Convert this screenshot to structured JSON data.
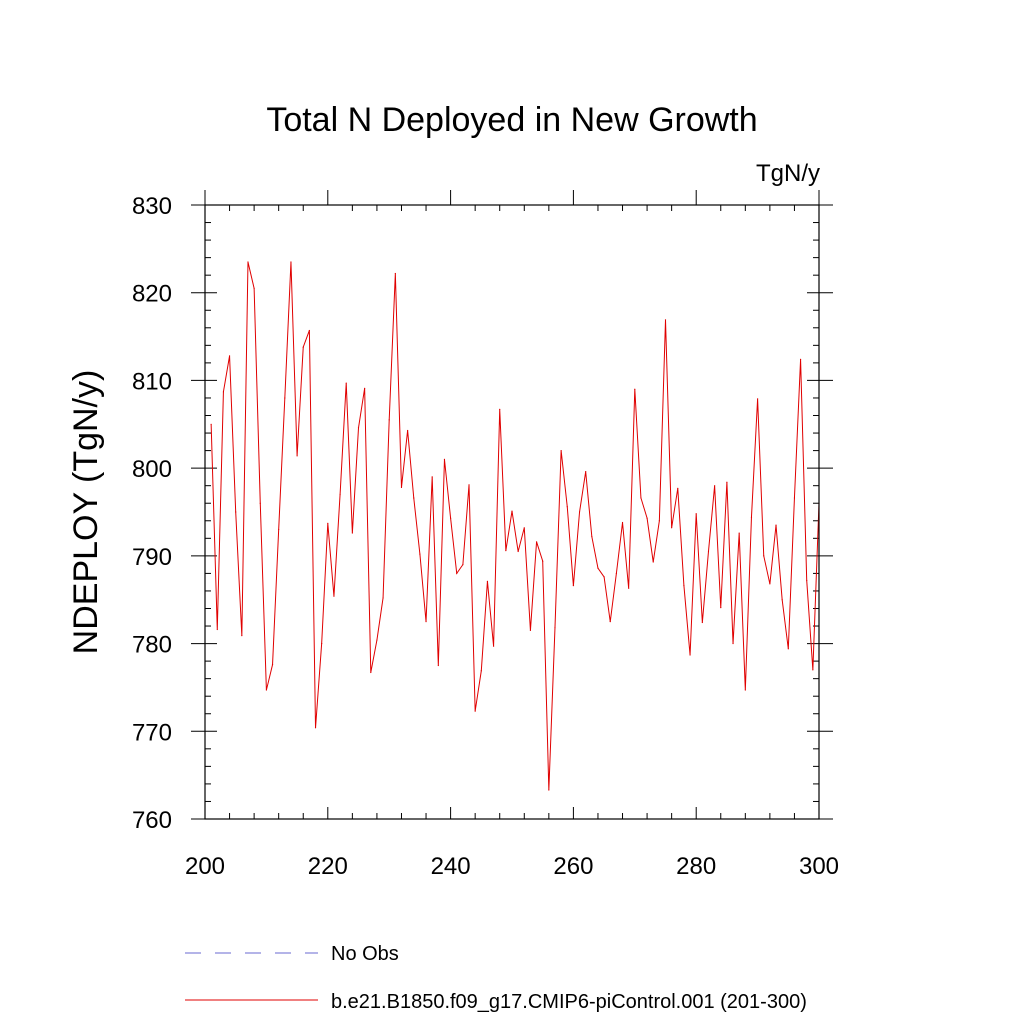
{
  "chart_data": {
    "type": "line",
    "title": "Total N Deployed in New Growth",
    "units_label": "TgN/y",
    "xlabel": "",
    "ylabel": "NDEPLOY  (TgN/y)",
    "xlim": [
      200,
      300
    ],
    "ylim": [
      760,
      830
    ],
    "x_ticks": [
      "200",
      "220",
      "240",
      "260",
      "280",
      "300"
    ],
    "y_ticks": [
      "760",
      "770",
      "780",
      "790",
      "800",
      "810",
      "820",
      "830"
    ],
    "grid": false,
    "legend": [
      {
        "label": "No Obs",
        "color": "#6a6ad0",
        "style": "dashed"
      },
      {
        "label": "b.e21.B1850.f09_g17.CMIP6-piControl.001 (201-300)",
        "color": "#e00000",
        "style": "solid"
      }
    ],
    "series": [
      {
        "name": "b.e21.B1850.f09_g17.CMIP6-piControl.001 (201-300)",
        "color": "#e00000",
        "x": [
          201,
          202,
          203,
          204,
          205,
          206,
          207,
          208,
          209,
          210,
          211,
          212,
          213,
          214,
          215,
          216,
          217,
          218,
          219,
          220,
          221,
          222,
          223,
          224,
          225,
          226,
          227,
          228,
          229,
          230,
          231,
          232,
          233,
          234,
          235,
          236,
          237,
          238,
          239,
          240,
          241,
          242,
          243,
          244,
          245,
          246,
          247,
          248,
          249,
          250,
          251,
          252,
          253,
          254,
          255,
          256,
          257,
          258,
          259,
          260,
          261,
          262,
          263,
          264,
          265,
          266,
          267,
          268,
          269,
          270,
          271,
          272,
          273,
          274,
          275,
          276,
          277,
          278,
          279,
          280,
          281,
          282,
          283,
          284,
          285,
          286,
          287,
          288,
          289,
          290,
          291,
          292,
          293,
          294,
          295,
          296,
          297,
          298,
          299,
          300
        ],
        "values": [
          805.0,
          781.6,
          808.7,
          812.8,
          795.0,
          780.9,
          823.5,
          820.5,
          796.0,
          774.7,
          777.6,
          793.0,
          808.0,
          823.5,
          801.4,
          813.8,
          815.7,
          770.4,
          780.0,
          793.7,
          785.4,
          797.0,
          809.7,
          792.6,
          804.6,
          809.1,
          776.7,
          780.4,
          785.2,
          805.5,
          822.2,
          797.8,
          804.3,
          796.6,
          790.2,
          782.5,
          799.0,
          777.5,
          801.0,
          794.3,
          788.0,
          789.0,
          798.1,
          772.3,
          776.9,
          787.1,
          779.7,
          806.7,
          790.6,
          795.1,
          790.5,
          793.2,
          781.5,
          791.6,
          789.4,
          763.3,
          781.8,
          802.0,
          795.6,
          786.6,
          795.0,
          799.6,
          792.2,
          788.6,
          787.6,
          782.5,
          788.0,
          793.8,
          786.3,
          809.0,
          796.6,
          794.3,
          789.3,
          794.0,
          816.9,
          793.2,
          797.7,
          786.6,
          778.7,
          794.8,
          782.4,
          790.5,
          798.0,
          784.1,
          798.4,
          780.0,
          792.6,
          774.7,
          794.4,
          807.9,
          790.0,
          786.8,
          793.5,
          785.0,
          779.4,
          796.6,
          812.4,
          787.2,
          777.0,
          796.0
        ]
      }
    ]
  }
}
